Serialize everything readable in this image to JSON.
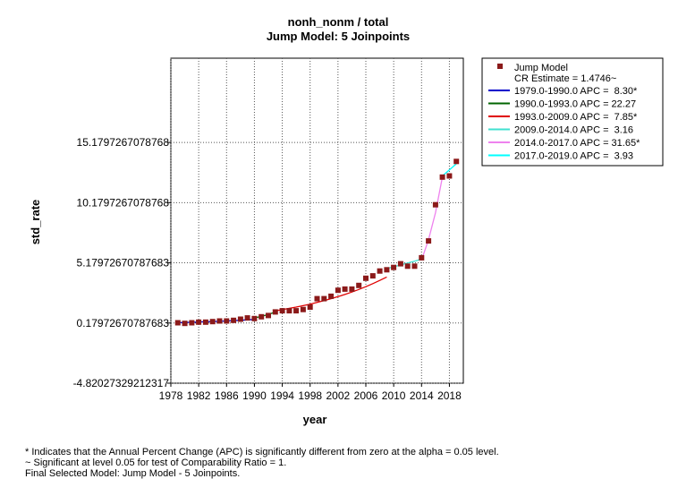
{
  "chart_data": {
    "type": "line",
    "title": "nonh_nonm / total",
    "subtitle": "Jump Model: 5 Joinpoints",
    "xlabel": "year",
    "ylabel": "std_rate",
    "xlim": [
      1978,
      2020
    ],
    "ylim": [
      -4.82027329212317,
      22.1797267078768
    ],
    "x_ticks": [
      1978,
      1982,
      1986,
      1990,
      1994,
      1998,
      2002,
      2006,
      2010,
      2014,
      2018
    ],
    "y_ticks": [
      -4.82027329212317,
      0.17972670787683,
      5.17972670787683,
      10.1797267078768,
      15.1797267078768
    ],
    "y_tick_labels": [
      "-4.82027329212317",
      "0.17972670787683",
      "5.17972670787683",
      "10.1797267078768",
      "15.1797267078768"
    ],
    "grid": true,
    "legend_position": "right",
    "observed": {
      "name": "Jump Model",
      "color": "#8b1a1a",
      "x": [
        1979,
        1980,
        1981,
        1982,
        1983,
        1984,
        1985,
        1986,
        1987,
        1988,
        1989,
        1990,
        1991,
        1992,
        1993,
        1994,
        1995,
        1996,
        1997,
        1998,
        1999,
        2000,
        2001,
        2002,
        2003,
        2004,
        2005,
        2006,
        2007,
        2008,
        2009,
        2010,
        2011,
        2012,
        2013,
        2014,
        2015,
        2016,
        2017,
        2018,
        2019
      ],
      "y": [
        0.2,
        0.15,
        0.2,
        0.25,
        0.25,
        0.3,
        0.35,
        0.35,
        0.4,
        0.5,
        0.6,
        0.55,
        0.7,
        0.8,
        1.1,
        1.2,
        1.2,
        1.2,
        1.3,
        1.5,
        2.2,
        2.2,
        2.4,
        2.9,
        3.0,
        3.0,
        3.3,
        3.9,
        4.1,
        4.5,
        4.6,
        4.8,
        5.1,
        4.9,
        4.9,
        5.6,
        7.0,
        10.0,
        12.3,
        12.4,
        13.6
      ]
    },
    "series": [
      {
        "name": "1979.0-1990.0 APC =  8.30*",
        "color": "#0000cc",
        "x": [
          1979,
          1980,
          1981,
          1982,
          1983,
          1984,
          1985,
          1986,
          1987,
          1988,
          1989,
          1990
        ],
        "y": [
          0.2,
          0.22,
          0.24,
          0.26,
          0.28,
          0.3,
          0.32,
          0.35,
          0.38,
          0.41,
          0.44,
          0.48
        ]
      },
      {
        "name": "1990.0-1993.0 APC = 22.27",
        "color": "#006400",
        "x": [
          1990,
          1991,
          1992,
          1993
        ],
        "y": [
          0.6,
          0.73,
          0.89,
          1.09
        ]
      },
      {
        "name": "1993.0-2009.0 APC =  7.85*",
        "color": "#e00000",
        "x": [
          1993,
          1994,
          1995,
          1996,
          1997,
          1998,
          1999,
          2000,
          2001,
          2002,
          2003,
          2004,
          2005,
          2006,
          2007,
          2008,
          2009
        ],
        "y": [
          1.2,
          1.29,
          1.4,
          1.5,
          1.62,
          1.75,
          1.89,
          2.04,
          2.2,
          2.37,
          2.55,
          2.75,
          2.97,
          3.2,
          3.45,
          3.72,
          4.0
        ]
      },
      {
        "name": "2009.0-2014.0 APC =  3.16",
        "color": "#40e0d0",
        "x": [
          2009,
          2010,
          2011,
          2012,
          2013,
          2014
        ],
        "y": [
          4.7,
          4.85,
          5.0,
          5.16,
          5.32,
          5.49
        ]
      },
      {
        "name": "2014.0-2017.0 APC = 31.65*",
        "color": "#ee82ee",
        "x": [
          2014,
          2015,
          2016,
          2017
        ],
        "y": [
          5.4,
          7.1,
          9.35,
          12.3
        ]
      },
      {
        "name": "2017.0-2019.0 APC =  3.93",
        "color": "#00ffff",
        "x": [
          2017,
          2018,
          2019
        ],
        "y": [
          12.4,
          12.9,
          13.4
        ]
      }
    ]
  },
  "legend": {
    "marker_label": "Jump Model",
    "cr_estimate": "CR Estimate = 1.4746~"
  },
  "footnotes": [
    "* Indicates that the Annual Percent Change (APC) is significantly different from zero at the alpha = 0.05 level.",
    "~ Significant at level 0.05 for test of Comparability Ratio = 1.",
    "Final Selected Model: Jump Model - 5 Joinpoints."
  ]
}
